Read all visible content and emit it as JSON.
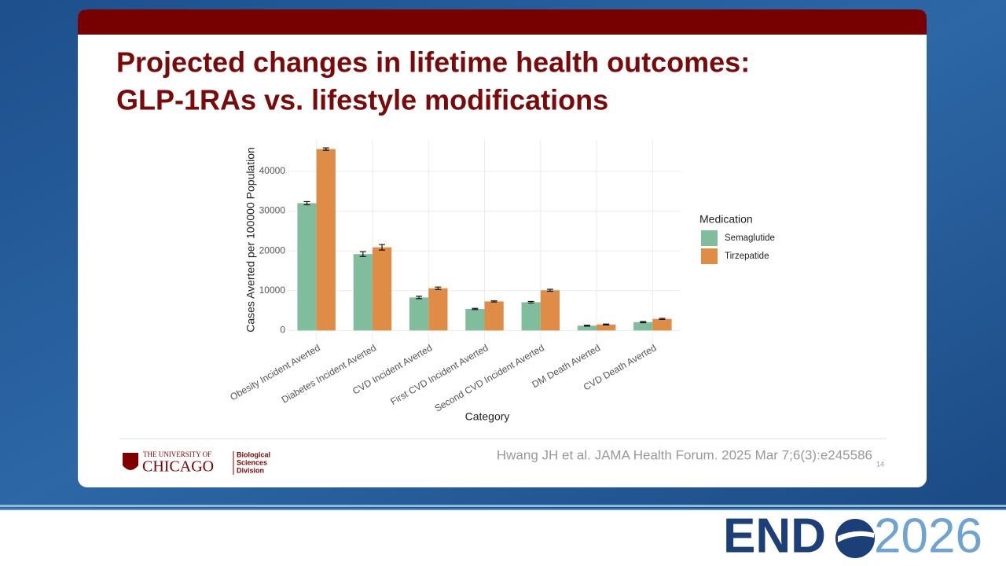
{
  "slide_title": [
    "Projected changes in lifetime health outcomes:",
    "GLP-1RAs vs. lifestyle modifications"
  ],
  "chart_data": {
    "type": "bar",
    "categories": [
      "Obesity Incident Averted",
      "Diabetes Incident Averted",
      "CVD Incident Averted",
      "First CVD Incident Averted",
      "Second CVD Incident Averted",
      "DM Death Averted",
      "CVD Death Averted"
    ],
    "series": [
      {
        "name": "Semaglutide",
        "color": "#80bd9d",
        "values": [
          32000,
          19200,
          8300,
          5400,
          7100,
          1200,
          2100
        ],
        "errors": [
          400,
          600,
          300,
          150,
          200,
          120,
          150
        ]
      },
      {
        "name": "Tirzepatide",
        "color": "#df8d46",
        "values": [
          45600,
          20900,
          10600,
          7300,
          10100,
          1500,
          2900
        ],
        "errors": [
          300,
          700,
          300,
          150,
          250,
          120,
          150
        ]
      }
    ],
    "x_label": "Category",
    "y_label": "Cases Averted per 100000 Population",
    "legend_title": "Medication",
    "ylim": [
      -2300,
      47900
    ],
    "yticks": [
      0,
      10000,
      20000,
      30000,
      40000
    ],
    "grid": true
  },
  "logo": {
    "line1": "THE UNIVERSITY OF",
    "line2": "CHICAGO",
    "division": [
      "Biological",
      "Sciences",
      "Division"
    ]
  },
  "citation": "Hwang JH et al. JAMA Health Forum. 2025 Mar 7;6(3):e245586",
  "page_number": "14",
  "conference": {
    "name": "END",
    "year": "2026"
  }
}
